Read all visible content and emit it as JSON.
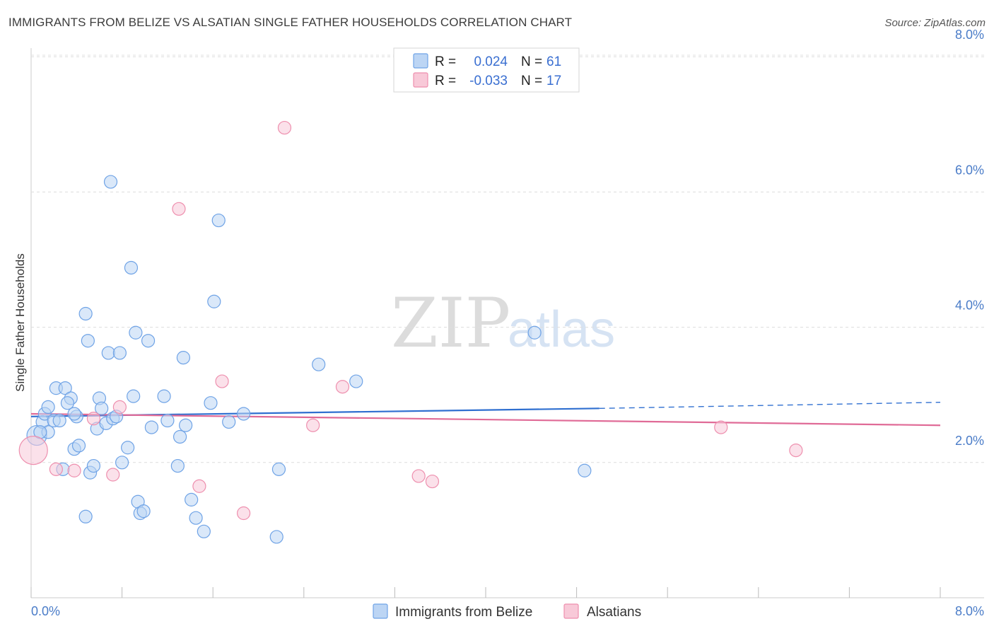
{
  "title": "IMMIGRANTS FROM BELIZE VS ALSATIAN SINGLE FATHER HOUSEHOLDS CORRELATION CHART",
  "source": "Source: ZipAtlas.com",
  "watermark": {
    "zip": "ZIP",
    "atlas": "atlas"
  },
  "colors": {
    "blue": "#6fa3e6",
    "blue_fill": "#bcd5f4",
    "blue_line": "#2f6fd0",
    "pink": "#ee8fae",
    "pink_fill": "#f8c9d8",
    "pink_line": "#e06b97",
    "tick": "#4a7cc8",
    "grid": "#dddddd"
  },
  "legend": {
    "rows": [
      {
        "r_label": "R =",
        "r_value": "0.024",
        "n_label": "N =",
        "n_value": "61"
      },
      {
        "r_label": "R =",
        "r_value": "-0.033",
        "n_label": "N =",
        "n_value": "17"
      }
    ]
  },
  "chart_data": {
    "type": "scatter",
    "title": "IMMIGRANTS FROM BELIZE VS ALSATIAN SINGLE FATHER HOUSEHOLDS CORRELATION CHART",
    "xlabel": "",
    "ylabel": "Single Father Households",
    "xlim": [
      0,
      8
    ],
    "ylim": [
      0,
      8.3
    ],
    "x_tick_labels": [
      "0.0%",
      "8.0%"
    ],
    "y_ticks": [
      2,
      4,
      6,
      8
    ],
    "y_tick_labels": [
      "2.0%",
      "4.0%",
      "6.0%",
      "8.0%"
    ],
    "grid": true,
    "series": [
      {
        "name": "Immigrants from Belize",
        "color": "#6fa3e6",
        "r": 0.024,
        "n": 61,
        "trend": {
          "x0": 0,
          "y0": 2.68,
          "x1": 5.0,
          "y1": 2.8,
          "dash_to_x": 8.0,
          "dash_to_y": 2.89
        },
        "points": [
          [
            0.05,
            2.4,
            14
          ],
          [
            0.1,
            2.6,
            9
          ],
          [
            0.12,
            2.72,
            9
          ],
          [
            0.15,
            2.45,
            9
          ],
          [
            0.08,
            2.45,
            9
          ],
          [
            0.2,
            2.62,
            9
          ],
          [
            0.22,
            3.1,
            9
          ],
          [
            0.25,
            2.62,
            9
          ],
          [
            0.3,
            3.1,
            9
          ],
          [
            0.35,
            2.95,
            9
          ],
          [
            0.32,
            2.88,
            9
          ],
          [
            0.28,
            1.9,
            9
          ],
          [
            0.4,
            2.68,
            9
          ],
          [
            0.38,
            2.2,
            9
          ],
          [
            0.42,
            2.25,
            9
          ],
          [
            0.48,
            4.2,
            9
          ],
          [
            0.5,
            3.8,
            9
          ],
          [
            0.52,
            1.85,
            9
          ],
          [
            0.55,
            1.95,
            9
          ],
          [
            0.58,
            2.5,
            9
          ],
          [
            0.6,
            2.95,
            9
          ],
          [
            0.62,
            2.8,
            9
          ],
          [
            0.66,
            2.58,
            9
          ],
          [
            0.68,
            3.62,
            9
          ],
          [
            0.7,
            6.15,
            9
          ],
          [
            0.72,
            2.65,
            9
          ],
          [
            0.75,
            2.68,
            9
          ],
          [
            0.78,
            3.62,
            9
          ],
          [
            0.8,
            2.0,
            9
          ],
          [
            0.85,
            2.22,
            9
          ],
          [
            0.88,
            4.88,
            9
          ],
          [
            0.9,
            2.98,
            9
          ],
          [
            0.92,
            3.92,
            9
          ],
          [
            0.94,
            1.42,
            9
          ],
          [
            0.96,
            1.25,
            9
          ],
          [
            0.99,
            1.28,
            9
          ],
          [
            1.03,
            3.8,
            9
          ],
          [
            1.06,
            2.52,
            9
          ],
          [
            1.17,
            2.98,
            9
          ],
          [
            1.2,
            2.62,
            9
          ],
          [
            1.29,
            1.95,
            9
          ],
          [
            1.31,
            2.38,
            9
          ],
          [
            1.34,
            3.55,
            9
          ],
          [
            1.36,
            2.55,
            9
          ],
          [
            1.41,
            1.45,
            9
          ],
          [
            1.45,
            1.18,
            9
          ],
          [
            1.52,
            0.98,
            9
          ],
          [
            1.58,
            2.88,
            9
          ],
          [
            1.61,
            4.38,
            9
          ],
          [
            1.65,
            5.58,
            9
          ],
          [
            1.74,
            2.6,
            9
          ],
          [
            1.87,
            2.72,
            9
          ],
          [
            2.16,
            0.9,
            9
          ],
          [
            2.18,
            1.9,
            9
          ],
          [
            2.53,
            3.45,
            9
          ],
          [
            2.86,
            3.2,
            9
          ],
          [
            4.43,
            3.92,
            9
          ],
          [
            4.87,
            1.88,
            9
          ],
          [
            0.48,
            1.2,
            9
          ],
          [
            0.15,
            2.82,
            9
          ],
          [
            0.38,
            2.72,
            9
          ]
        ]
      },
      {
        "name": "Alsatians",
        "color": "#ee8fae",
        "r": -0.033,
        "n": 17,
        "trend": {
          "x0": 0,
          "y0": 2.72,
          "x1": 8.0,
          "y1": 2.55
        },
        "points": [
          [
            0.02,
            2.18,
            20
          ],
          [
            0.22,
            1.9,
            9
          ],
          [
            0.38,
            1.88,
            9
          ],
          [
            0.55,
            2.65,
            9
          ],
          [
            0.72,
            1.82,
            9
          ],
          [
            0.78,
            2.82,
            9
          ],
          [
            1.3,
            5.75,
            9
          ],
          [
            1.48,
            1.65,
            9
          ],
          [
            1.68,
            3.2,
            9
          ],
          [
            1.87,
            1.25,
            9
          ],
          [
            2.23,
            6.95,
            9
          ],
          [
            2.48,
            2.55,
            9
          ],
          [
            2.74,
            3.12,
            9
          ],
          [
            3.41,
            1.8,
            9
          ],
          [
            3.53,
            1.72,
            9
          ],
          [
            6.07,
            2.52,
            9
          ],
          [
            6.73,
            2.18,
            9
          ]
        ]
      }
    ]
  }
}
